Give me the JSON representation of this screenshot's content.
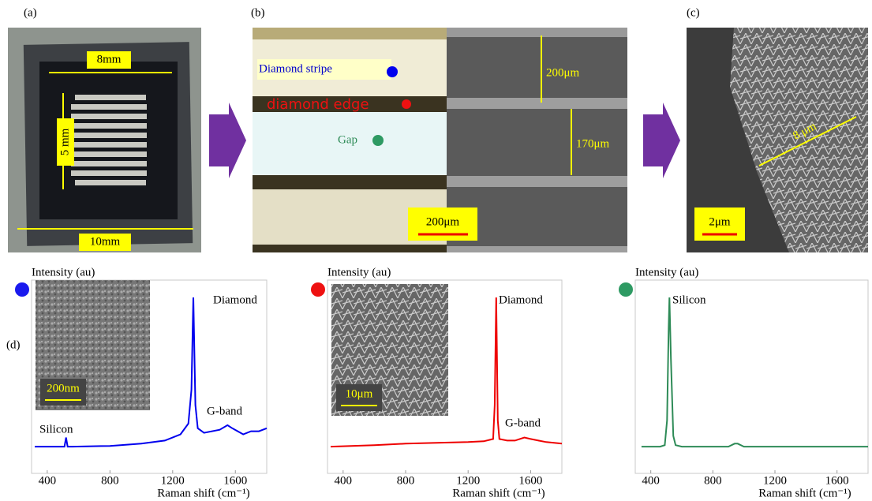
{
  "panels": {
    "a": {
      "label": "(a)",
      "width_label": "8mm",
      "height_label": "5 mm",
      "substrate_label": "10mm"
    },
    "b": {
      "label": "(b)",
      "stripe_label": "Diamond stripe",
      "edge_label": "diamond edge",
      "gap_label": "Gap",
      "stripe_width": "200μm",
      "gap_width": "170μm",
      "scale_bar": "200μm"
    },
    "c": {
      "label": "(c)",
      "thickness": "8 μm",
      "scale_bar": "2μm"
    },
    "d": {
      "label": "(d)"
    }
  },
  "chart_data": [
    {
      "type": "line",
      "y_label": "Intensity (au)",
      "x_label": "Raman shift (cm⁻¹)",
      "color": "#0000ee",
      "marker_color": "#1a1aee",
      "annotations": [
        "Diamond",
        "G-band",
        "Silicon"
      ],
      "inset_scale": "200nm",
      "x": [
        320,
        480,
        510,
        520,
        530,
        560,
        800,
        1000,
        1150,
        1250,
        1300,
        1320,
        1332,
        1345,
        1360,
        1400,
        1500,
        1550,
        1580,
        1650,
        1700,
        1750,
        1800
      ],
      "values": [
        3,
        3,
        3,
        9,
        3,
        3,
        3.5,
        5,
        7,
        11,
        18,
        40,
        100,
        30,
        15,
        12,
        14,
        17,
        15,
        11,
        13,
        13,
        15
      ],
      "xlim": [
        300,
        1800
      ],
      "xticks": [
        400,
        800,
        1200,
        1600
      ],
      "ylim": [
        0,
        100
      ]
    },
    {
      "type": "line",
      "y_label": "Intensity (au)",
      "x_label": "Raman shift (cm⁻¹)",
      "color": "#ee0000",
      "marker_color": "#ee1111",
      "annotations": [
        "Diamond",
        "G-band"
      ],
      "inset_scale": "10μm",
      "x": [
        320,
        600,
        800,
        1000,
        1200,
        1300,
        1360,
        1370,
        1380,
        1390,
        1400,
        1450,
        1500,
        1560,
        1600,
        1650,
        1700,
        1800
      ],
      "values": [
        3,
        4,
        5,
        5.5,
        6,
        6.5,
        8,
        30,
        100,
        20,
        8,
        7,
        7,
        9,
        8,
        7,
        6,
        5
      ],
      "xlim": [
        300,
        1800
      ],
      "xticks": [
        400,
        800,
        1200,
        1600
      ],
      "ylim": [
        0,
        100
      ]
    },
    {
      "type": "line",
      "y_label": "Intensity (au)",
      "x_label": "Raman shift (cm⁻¹)",
      "color": "#2e8b57",
      "marker_color": "#2e9a63",
      "annotations": [
        "Silicon"
      ],
      "x": [
        340,
        460,
        490,
        505,
        515,
        520,
        530,
        545,
        560,
        600,
        800,
        900,
        940,
        960,
        1000,
        1200,
        1800
      ],
      "values": [
        3,
        3,
        4,
        20,
        80,
        100,
        60,
        10,
        4,
        3,
        3,
        3,
        5,
        5,
        3,
        3,
        3
      ],
      "xlim": [
        300,
        1800
      ],
      "xticks": [
        400,
        800,
        1200,
        1600
      ],
      "ylim": [
        0,
        100
      ]
    }
  ]
}
